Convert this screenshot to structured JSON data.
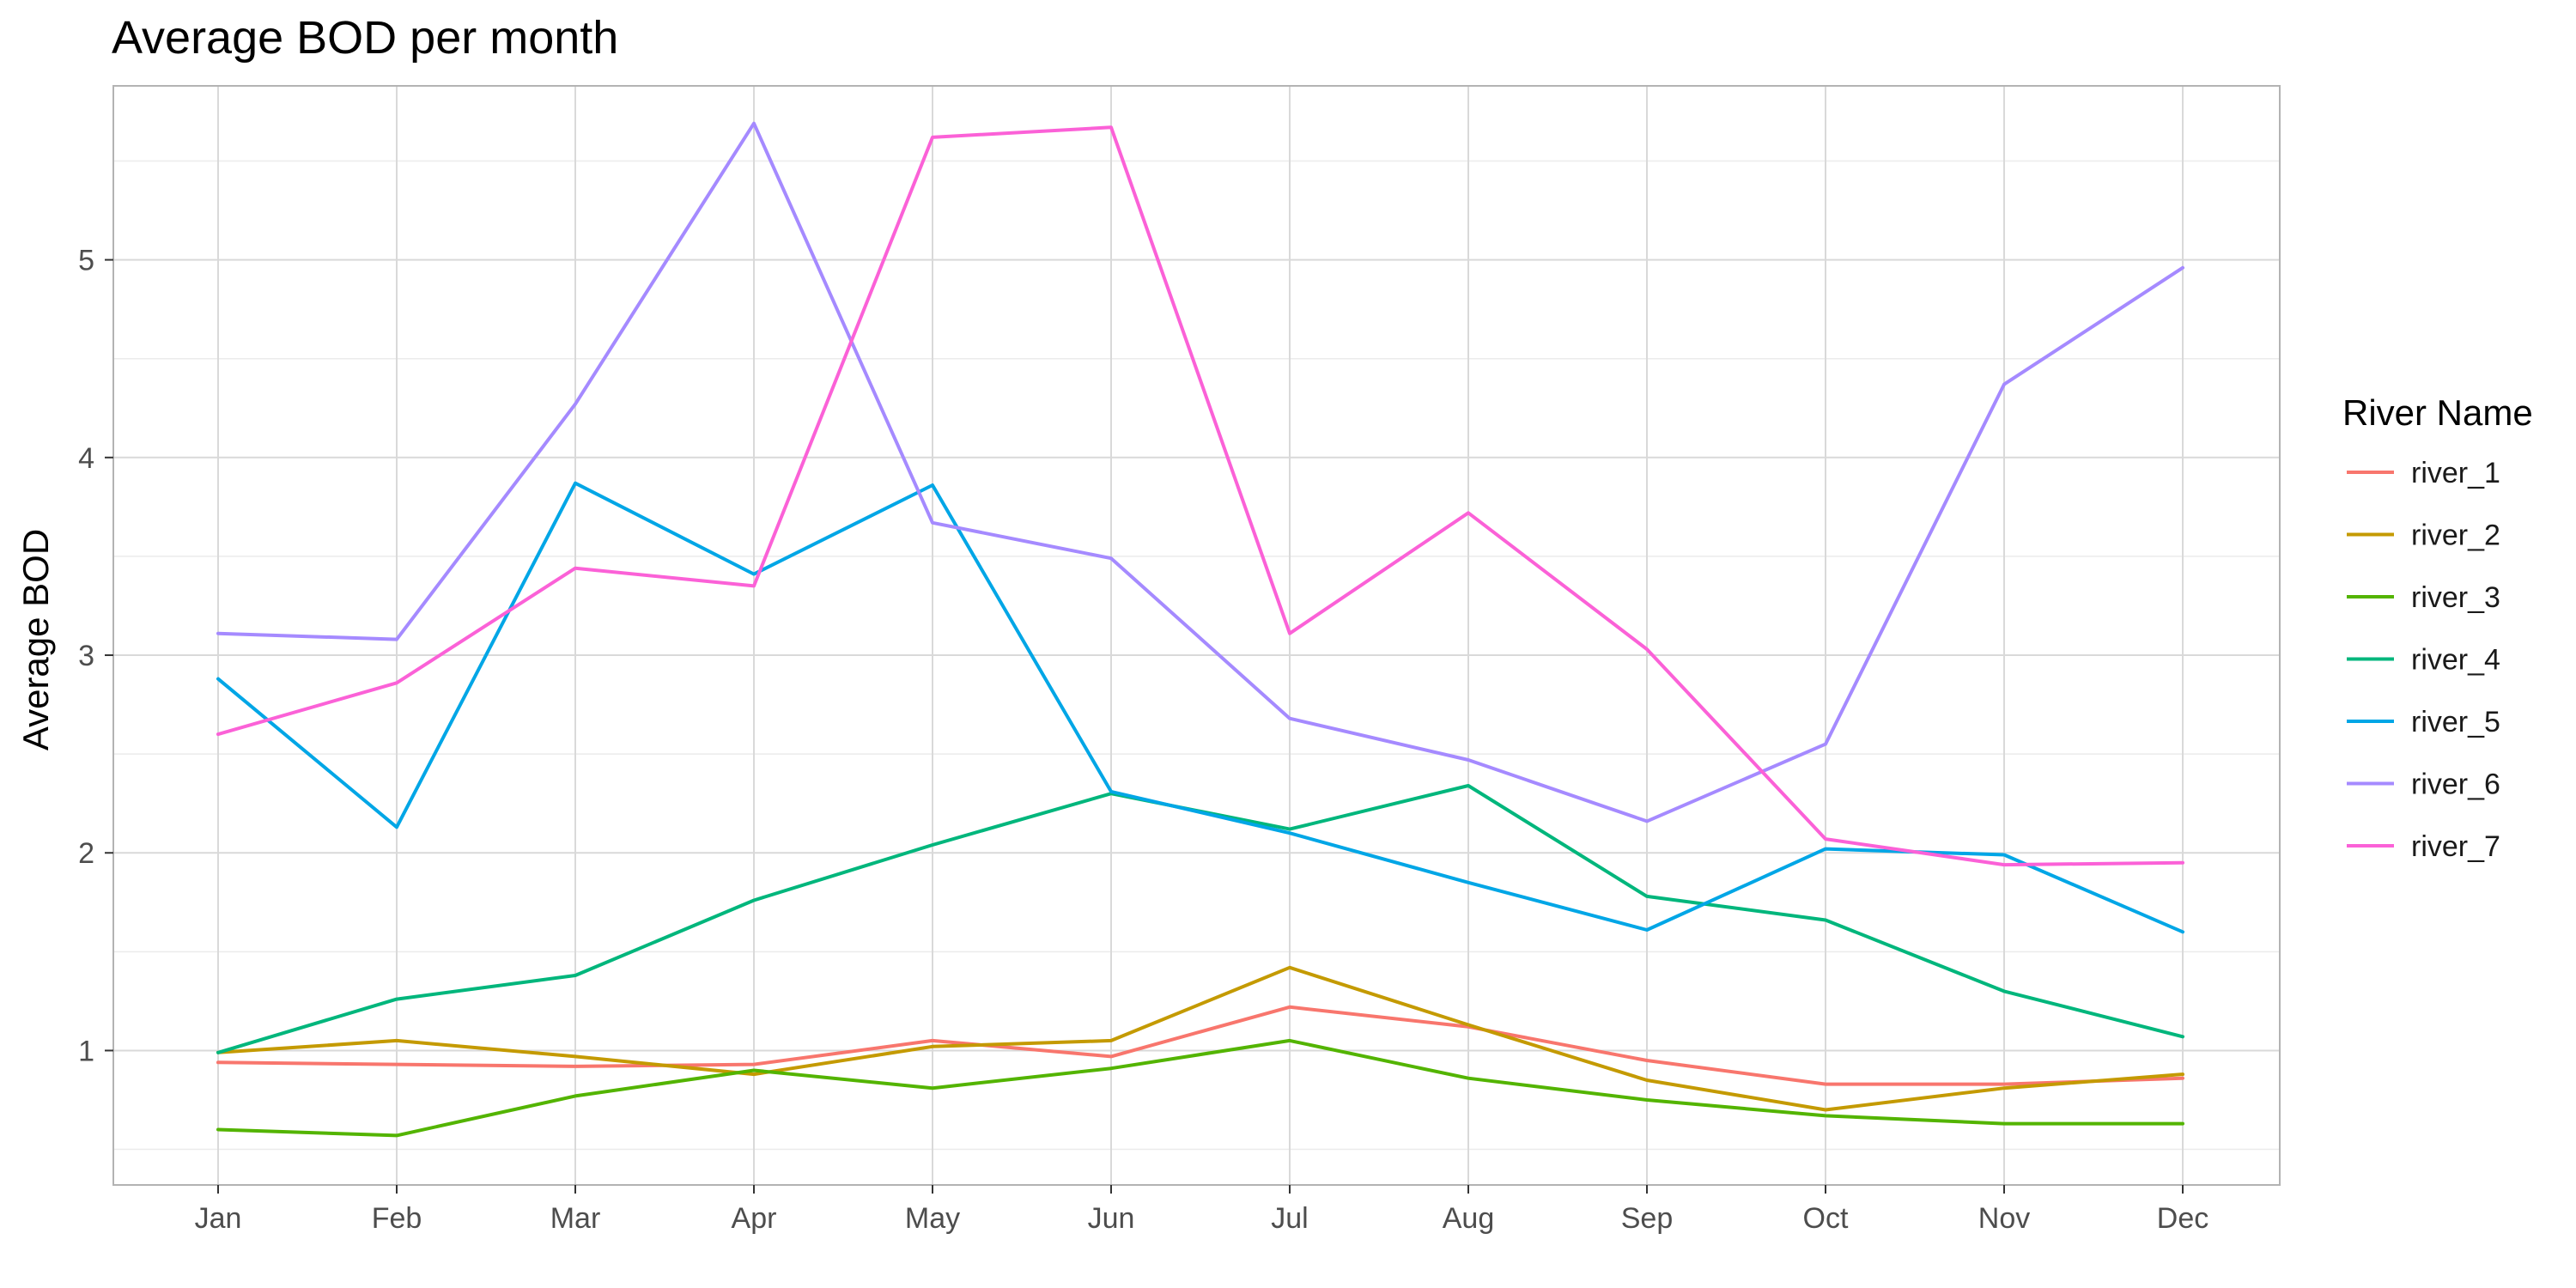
{
  "chart_data": {
    "type": "line",
    "title": "Average BOD per month",
    "xlabel": "",
    "ylabel": "Average BOD",
    "categories": [
      "Jan",
      "Feb",
      "Mar",
      "Apr",
      "May",
      "Jun",
      "Jul",
      "Aug",
      "Sep",
      "Oct",
      "Nov",
      "Dec"
    ],
    "ylim": [
      0.32,
      5.88
    ],
    "yticks": [
      1,
      2,
      3,
      4,
      5
    ],
    "grid": true,
    "legend_title": "River Name",
    "legend_position": "right",
    "series": [
      {
        "name": "river_1",
        "color": "#F8766D",
        "values": [
          0.94,
          0.93,
          0.92,
          0.93,
          1.05,
          0.97,
          1.22,
          1.12,
          0.95,
          0.83,
          0.83,
          0.86
        ]
      },
      {
        "name": "river_2",
        "color": "#C49A00",
        "values": [
          0.99,
          1.05,
          0.97,
          0.88,
          1.02,
          1.05,
          1.42,
          1.13,
          0.85,
          0.7,
          0.81,
          0.88
        ]
      },
      {
        "name": "river_3",
        "color": "#53B400",
        "values": [
          0.6,
          0.57,
          0.77,
          0.9,
          0.81,
          0.91,
          1.05,
          0.86,
          0.75,
          0.67,
          0.63,
          0.63
        ]
      },
      {
        "name": "river_4",
        "color": "#00B67C",
        "values": [
          0.99,
          1.26,
          1.38,
          1.76,
          2.04,
          2.3,
          2.12,
          2.34,
          1.78,
          1.66,
          1.3,
          1.07
        ]
      },
      {
        "name": "river_5",
        "color": "#00A6E6",
        "values": [
          2.88,
          2.13,
          3.87,
          3.41,
          3.86,
          2.31,
          2.1,
          1.85,
          1.61,
          2.02,
          1.99,
          1.6
        ]
      },
      {
        "name": "river_6",
        "color": "#A58AFF",
        "values": [
          3.11,
          3.08,
          4.27,
          5.69,
          3.67,
          3.49,
          2.68,
          2.47,
          2.16,
          2.55,
          4.37,
          4.96
        ]
      },
      {
        "name": "river_7",
        "color": "#FB61D7",
        "values": [
          2.6,
          2.86,
          3.44,
          3.35,
          5.62,
          5.67,
          3.11,
          3.72,
          3.03,
          2.07,
          1.94,
          1.95
        ]
      }
    ]
  }
}
